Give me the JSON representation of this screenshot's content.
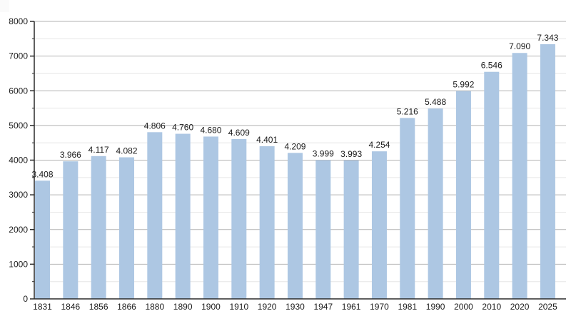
{
  "chart_data": {
    "type": "bar",
    "title": "",
    "xlabel": "",
    "ylabel": "",
    "categories": [
      "1831",
      "1846",
      "1856",
      "1866",
      "1880",
      "1890",
      "1900",
      "1910",
      "1920",
      "1930",
      "1947",
      "1961",
      "1970",
      "1981",
      "1990",
      "2000",
      "2010",
      "2020",
      "2025"
    ],
    "values": [
      3408,
      3966,
      4117,
      4082,
      4806,
      4760,
      4680,
      4609,
      4401,
      4209,
      3999,
      3993,
      4254,
      5216,
      5488,
      5992,
      6546,
      7090,
      7343
    ],
    "value_labels": [
      "3.408",
      "3.966",
      "4.117",
      "4.082",
      "4.806",
      "4.760",
      "4.680",
      "4.609",
      "4.401",
      "4.209",
      "3.999",
      "3.993",
      "4.254",
      "5.216",
      "5.488",
      "5.992",
      "6.546",
      "7.090",
      "7.343"
    ],
    "ylim": [
      0,
      8000
    ],
    "y_major_step": 1000,
    "y_minor_step": 500,
    "y_tick_labels": [
      "0",
      "1000",
      "2000",
      "3000",
      "4000",
      "5000",
      "6000",
      "7000",
      "8000"
    ],
    "grid": "horizontal",
    "legend": "none",
    "bar_color": "#adc7e3",
    "major_grid_color": "#b2b2b2",
    "minor_grid_color": "#e6e6e6",
    "axis_color": "#2a2a2a",
    "label_color": "#1b1b1b"
  }
}
